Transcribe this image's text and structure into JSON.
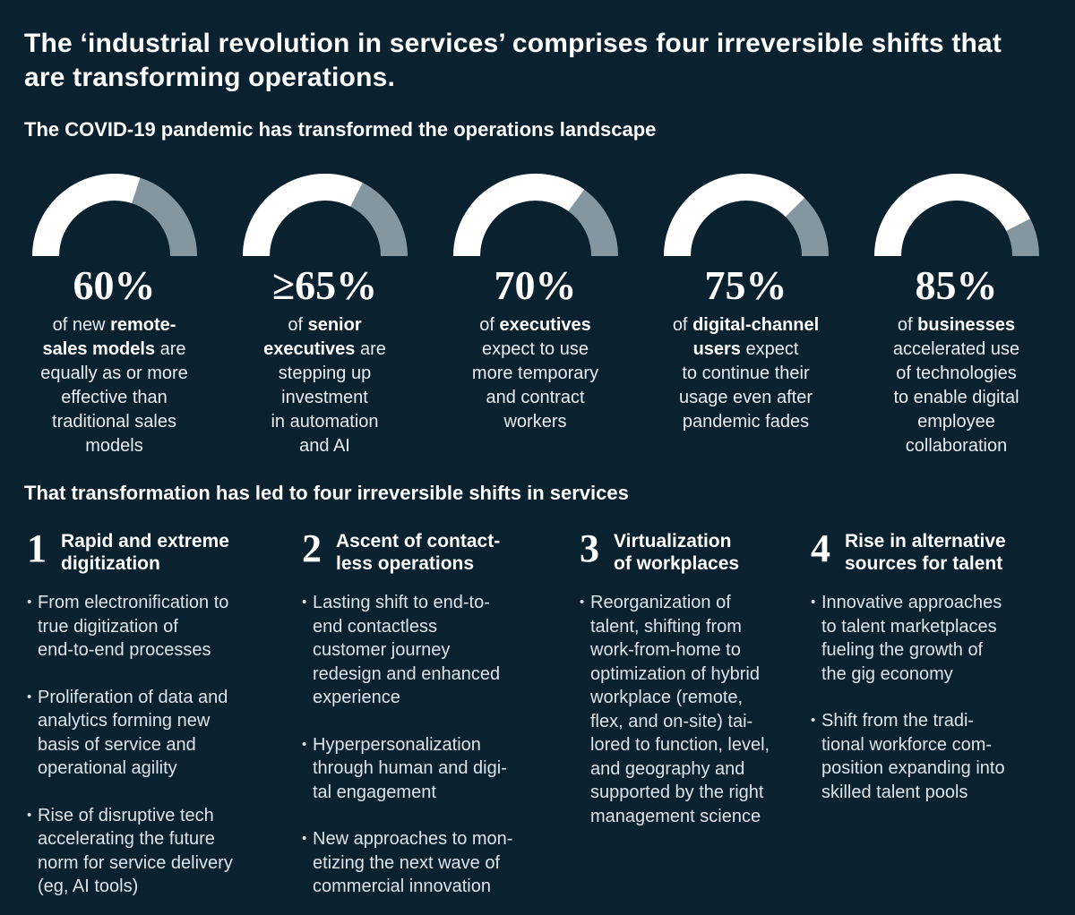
{
  "colors": {
    "background": "#0a2130",
    "arc_fill": "#ffffff",
    "arc_remainder": "#8496a0",
    "text_primary": "#ffffff",
    "text_body": "#dde4e9"
  },
  "title": "The ‘industrial revolution in services’ comprises four irreversible shifts that\nare transforming operations.",
  "intro_heading": "The COVID-19 pandemic has transformed the operations landscape",
  "shifts_heading": "That transformation has led to four irreversible shifts in services",
  "chart_data": {
    "type": "gauge",
    "shape": "semicircle-donut",
    "title": "The COVID-19 pandemic has transformed the operations landscape",
    "range": [
      0,
      100
    ],
    "fill_color": "#ffffff",
    "track_color": "#8496a0",
    "gauges": [
      {
        "label": "60%",
        "value": 60,
        "description": "of new remote-sales models are equally as or more effective than traditional sales models"
      },
      {
        "label": "≥65%",
        "value": 65,
        "description": "of senior executives are stepping up investment in automation and AI"
      },
      {
        "label": "70%",
        "value": 70,
        "description": "of executives expect to use more temporary and contract workers"
      },
      {
        "label": "75%",
        "value": 75,
        "description": "of digital-channel users expect to continue their usage even after pandemic fades"
      },
      {
        "label": "85%",
        "value": 85,
        "description": "of businesses accelerated use of technologies to enable digital employee collaboration"
      }
    ]
  },
  "gauges": {
    "items": [
      {
        "value_label": "60%",
        "value": 60,
        "description": [
          {
            "text": "of new ",
            "bold": false
          },
          {
            "text": "remote-\nsales models",
            "bold": true
          },
          {
            "text": " are\nequally as or more\neffective than\ntraditional sales\nmodels",
            "bold": false
          }
        ]
      },
      {
        "value_label": "≥65%",
        "value": 65,
        "description": [
          {
            "text": "of ",
            "bold": false
          },
          {
            "text": "senior\nexecutives",
            "bold": true
          },
          {
            "text": " are\nstepping up\ninvestment\nin automation\nand AI",
            "bold": false
          }
        ]
      },
      {
        "value_label": "70%",
        "value": 70,
        "description": [
          {
            "text": "of ",
            "bold": false
          },
          {
            "text": "executives",
            "bold": true
          },
          {
            "text": "\nexpect to use\nmore temporary\nand contract\nworkers",
            "bold": false
          }
        ]
      },
      {
        "value_label": "75%",
        "value": 75,
        "description": [
          {
            "text": "of ",
            "bold": false
          },
          {
            "text": "digital-channel\nusers",
            "bold": true
          },
          {
            "text": " expect\nto continue their\nusage even after\npandemic fades",
            "bold": false
          }
        ]
      },
      {
        "value_label": "85%",
        "value": 85,
        "description": [
          {
            "text": "of ",
            "bold": false
          },
          {
            "text": "businesses",
            "bold": true
          },
          {
            "text": "\naccelerated use\nof technologies\nto enable digital\nemployee\ncollaboration",
            "bold": false
          }
        ]
      }
    ]
  },
  "shifts": {
    "items": [
      {
        "number": "1",
        "title": "Rapid and extreme\ndigitization",
        "bullets": [
          "From electronification to\ntrue digitization of\nend-to-end processes",
          "Proliferation of data and\nanalytics forming new\nbasis of service and\noperational agility",
          "Rise of disruptive tech\naccelerating the future\nnorm for service delivery\n(eg, AI tools)"
        ]
      },
      {
        "number": "2",
        "title": "Ascent of contact-\nless operations",
        "bullets": [
          "Lasting shift to end-to-\nend contactless\ncustomer journey\nredesign and enhanced\nexperience",
          "Hyperpersonalization\nthrough human and digi-\ntal engagement",
          "New approaches to mon-\netizing the next wave of\ncommercial innovation"
        ]
      },
      {
        "number": "3",
        "title": "Virtualization\nof workplaces",
        "bullets": [
          "Reorganization of\ntalent, shifting from\nwork-from-home to\noptimization of hybrid\nworkplace (remote,\nflex, and on-site) tai-\nlored to function, level,\nand geography and\nsupported by the right\nmanagement science"
        ]
      },
      {
        "number": "4",
        "title": "Rise in alternative\nsources for talent",
        "bullets": [
          "Innovative approaches\nto talent marketplaces\nfueling the growth of\nthe gig economy",
          "Shift from the tradi-\ntional workforce com-\nposition expanding into\nskilled talent pools"
        ]
      }
    ]
  }
}
